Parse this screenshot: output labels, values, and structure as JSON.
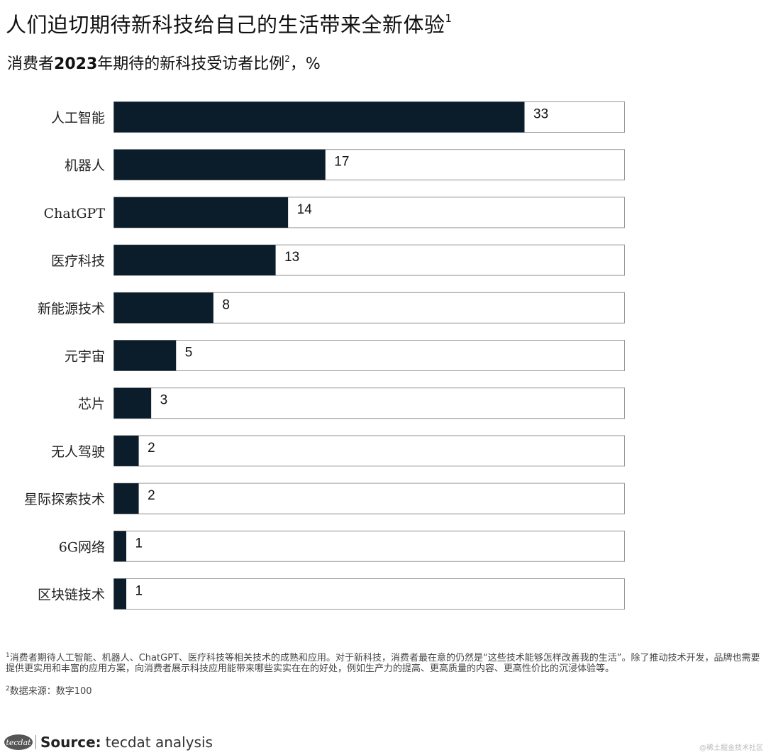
{
  "title": "人们迫切期待新科技给自己的生活带来全新体验",
  "title_sup": "1",
  "subtitle": {
    "pre": "消费者",
    "bold": "2023",
    "post": "年期待的新科技受访者比例",
    "sup": "2",
    "unit": "，%"
  },
  "chart_data": {
    "type": "bar",
    "orientation": "horizontal",
    "categories": [
      "人工智能",
      "机器人",
      "ChatGPT",
      "医疗科技",
      "新能源技术",
      "元宇宙",
      "芯片",
      "无人驾驶",
      "星际探索技术",
      "6G网络",
      "区块链技术"
    ],
    "values": [
      33,
      17,
      14,
      13,
      8,
      5,
      3,
      2,
      2,
      1,
      1
    ],
    "xlim": [
      0,
      33
    ],
    "grid": false,
    "bar_color": "#0b1c2a",
    "track_color": "#ffffff",
    "track_border_color": "#9a9a9a"
  },
  "footnotes": [
    {
      "sup": "1",
      "text": "消费者期待人工智能、机器人、ChatGPT、医疗科技等相关技术的成熟和应用。对于新科技，消费者最在意的仍然是“这些技术能够怎样改善我的生活”。除了推动技术开发，品牌也需要提供更实用和丰富的应用方案，向消费者展示科技应用能带来哪些实实在在的好处，例如生产力的提高、更高质量的内容、更高性价比的沉浸体验等。"
    },
    {
      "sup": "2",
      "text": "数据来源：数字100"
    }
  ],
  "source": {
    "logo_text": "tecdat",
    "label": "Source:",
    "text": "tecdat analysis"
  },
  "watermark": "@稀土掘金技术社区"
}
